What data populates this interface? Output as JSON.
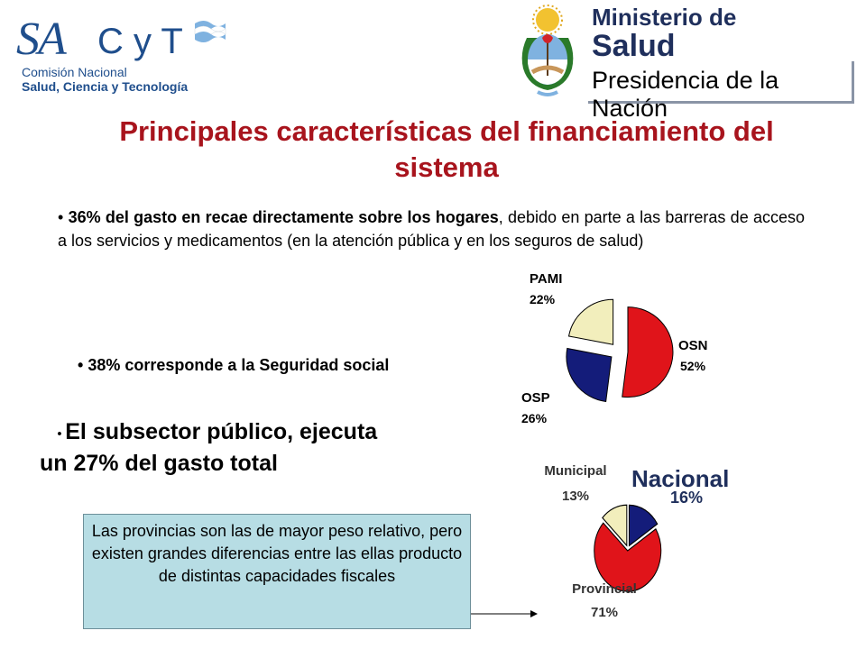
{
  "header": {
    "sacyt_logo": {
      "wordmark_sa": "SA",
      "wordmark_cy": "C y T",
      "line1": "Comisión Nacional",
      "line2": "Salud, Ciencia y Tecnología",
      "icon": "argentina-flag-icon"
    },
    "ministry_logo": {
      "line1": "Ministerio de",
      "line2": "Salud",
      "line3": "Presidencia de la Nación",
      "icon": "argentina-coat-of-arms-icon"
    }
  },
  "title": "Principales características del financiamiento del sistema",
  "bullets": {
    "b1_bold": "36%   del gasto en recae directamente sobre los hogares",
    "b1_rest": ", debido en parte a las barreras de acceso a los servicios y medicamentos (en la atención pública y en los seguros de salud)",
    "b2": "38% corresponde a la Seguridad social",
    "b3": "El subsector público, ejecuta un 27% del gasto total"
  },
  "note": "Las provincias son las de mayor peso relativo, pero existen grandes diferencias entre las ellas producto de distintas capacidades fiscales",
  "colors": {
    "title": "#a8141d",
    "red": "#e0141a",
    "navy": "#141c7a",
    "cream": "#f2eebc",
    "note_bg": "#b7dde4"
  },
  "chart_data": [
    {
      "type": "pie",
      "series": [
        {
          "name": "PAMI",
          "label": "22%",
          "value": 22,
          "color": "#f2eebc"
        },
        {
          "name": "OSN",
          "label": "52%",
          "value": 52,
          "color": "#e0141a"
        },
        {
          "name": "OSP",
          "label": "26%",
          "value": 26,
          "color": "#141c7a"
        }
      ]
    },
    {
      "type": "pie",
      "series": [
        {
          "name": "Municipal",
          "label": "13%",
          "value": 13,
          "color": "#f2eebc"
        },
        {
          "name": "Nacional",
          "label": "16%",
          "value": 16,
          "color": "#141c7a"
        },
        {
          "name": "Provincial",
          "label": "71%",
          "value": 71,
          "color": "#e0141a"
        }
      ]
    }
  ]
}
